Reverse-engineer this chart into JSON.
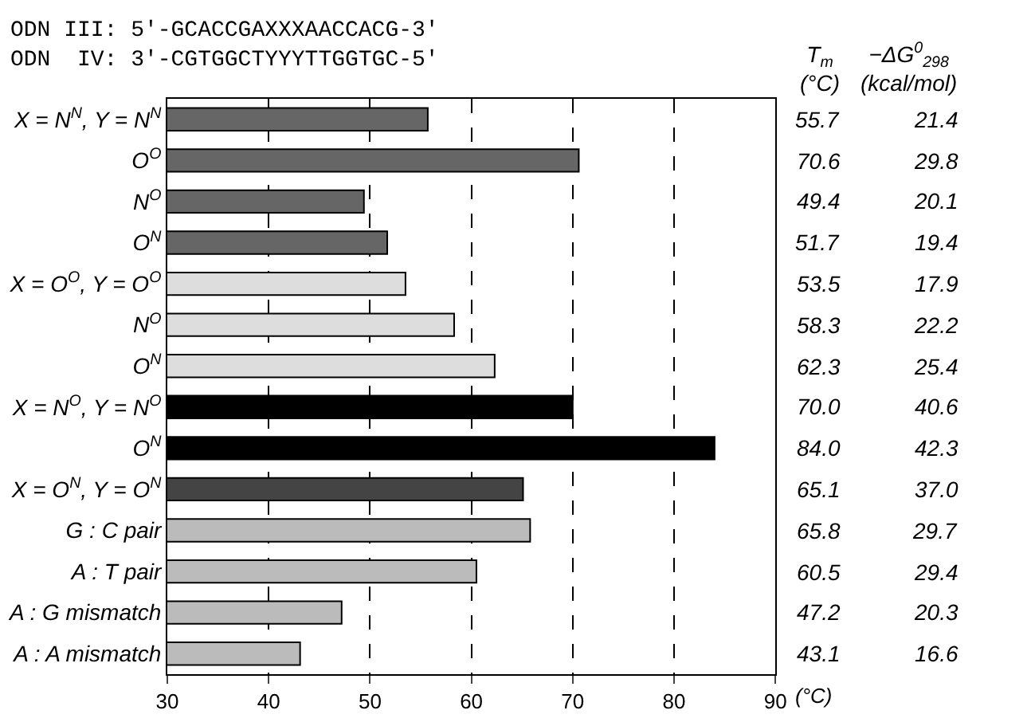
{
  "chart_data": [
    {
      "type": "bar",
      "orientation": "horizontal",
      "title": "ODN III: 5'-GCACCGAXXXAACCACG-3'\nODN  IV: 3'-CGTGGCTYYYTTGGTGC-5'",
      "categories": [
        "X = N$^{N}$, Y = N$^{N}$",
        "O$^{O}$",
        "N$^{O}$",
        "O$^{N}$",
        "X = O$^{O}$, Y = O$^{O}$",
        "N$^{O}$",
        "O$^{N}$",
        "X = N$^{O}$, Y = N$^{O}$",
        "O$^{N}$",
        "X = O$^{N}$, Y = O$^{N}$",
        "G : C pair",
        "A : T pair",
        "A : G mismatch",
        "A : A mismatch"
      ],
      "values": [
        55.7,
        70.6,
        49.4,
        51.7,
        53.5,
        58.3,
        62.3,
        70.0,
        84.0,
        65.1,
        65.8,
        60.5,
        47.2,
        43.1
      ],
      "colors": [
        "#666666",
        "#666666",
        "#666666",
        "#666666",
        "#dddddd",
        "#dddddd",
        "#dddddd",
        "#000000",
        "#000000",
        "#444444",
        "#bbbbbb",
        "#bbbbbb",
        "#bbbbbb",
        "#bbbbbb"
      ],
      "value_labels": [
        "55.7",
        "70.6",
        "49.4",
        "51.7",
        "53.5",
        "58.3",
        "62.3",
        "70.0",
        "84.0",
        "65.1",
        "65.8",
        "60.5",
        "47.2",
        "43.1"
      ],
      "legend_title": "T$_{m}$\n(°C)",
      "xlabel": "(°C)",
      "xlim": [
        30,
        90
      ],
      "xticks": [
        30,
        40,
        50,
        60,
        70,
        80,
        90
      ],
      "grid": "x",
      "legend": false
    },
    {
      "type": "other",
      "title": "−ΔG$^{0}$$_{298}$\n(kcal/mol)",
      "values": [
        21.4,
        29.8,
        20.1,
        19.4,
        17.9,
        22.2,
        25.4,
        40.6,
        42.3,
        37.0,
        29.7,
        29.4,
        20.3,
        16.6
      ],
      "value_labels": [
        "21.4",
        "29.8",
        "20.1",
        "19.4",
        "17.9",
        "22.2",
        "25.4",
        "40.6",
        "42.3",
        "37.0",
        "29.7",
        "29.4",
        "20.3",
        "16.6"
      ]
    }
  ]
}
